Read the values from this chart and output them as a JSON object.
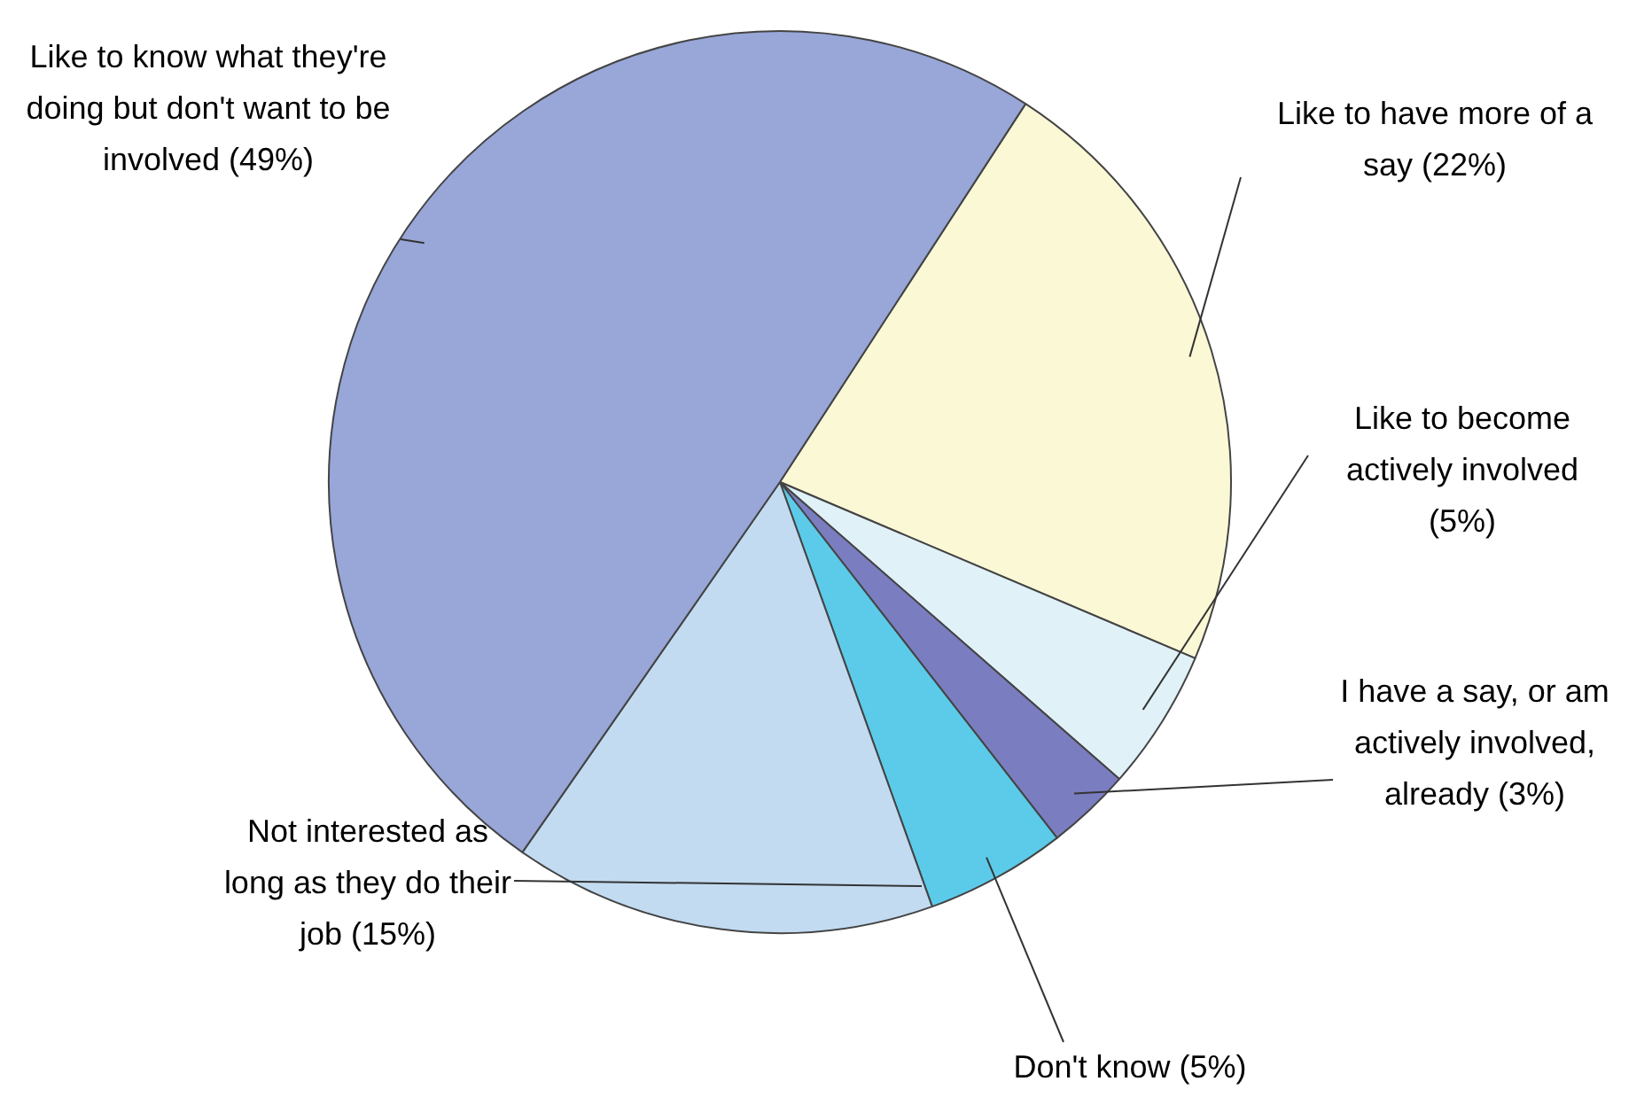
{
  "chart_data": {
    "type": "pie",
    "categories": [
      "Like to have more of a say",
      "Like to become actively involved",
      "I have a say, or am actively involved, already",
      "Don't know",
      "Not interested as long as they do their job",
      "Like to know what they're doing but don't want to be involved"
    ],
    "values": [
      22,
      5,
      3,
      5,
      15,
      49
    ],
    "value_labels": [
      "(22%)",
      "(5%)",
      "(3%)",
      "(5%)",
      "(15%)",
      "(49%)"
    ],
    "colors": [
      "#fbf8d6",
      "#e0f1f8",
      "#7a7ec0",
      "#5ccbea",
      "#c2dbf1",
      "#98a7d8"
    ]
  }
}
